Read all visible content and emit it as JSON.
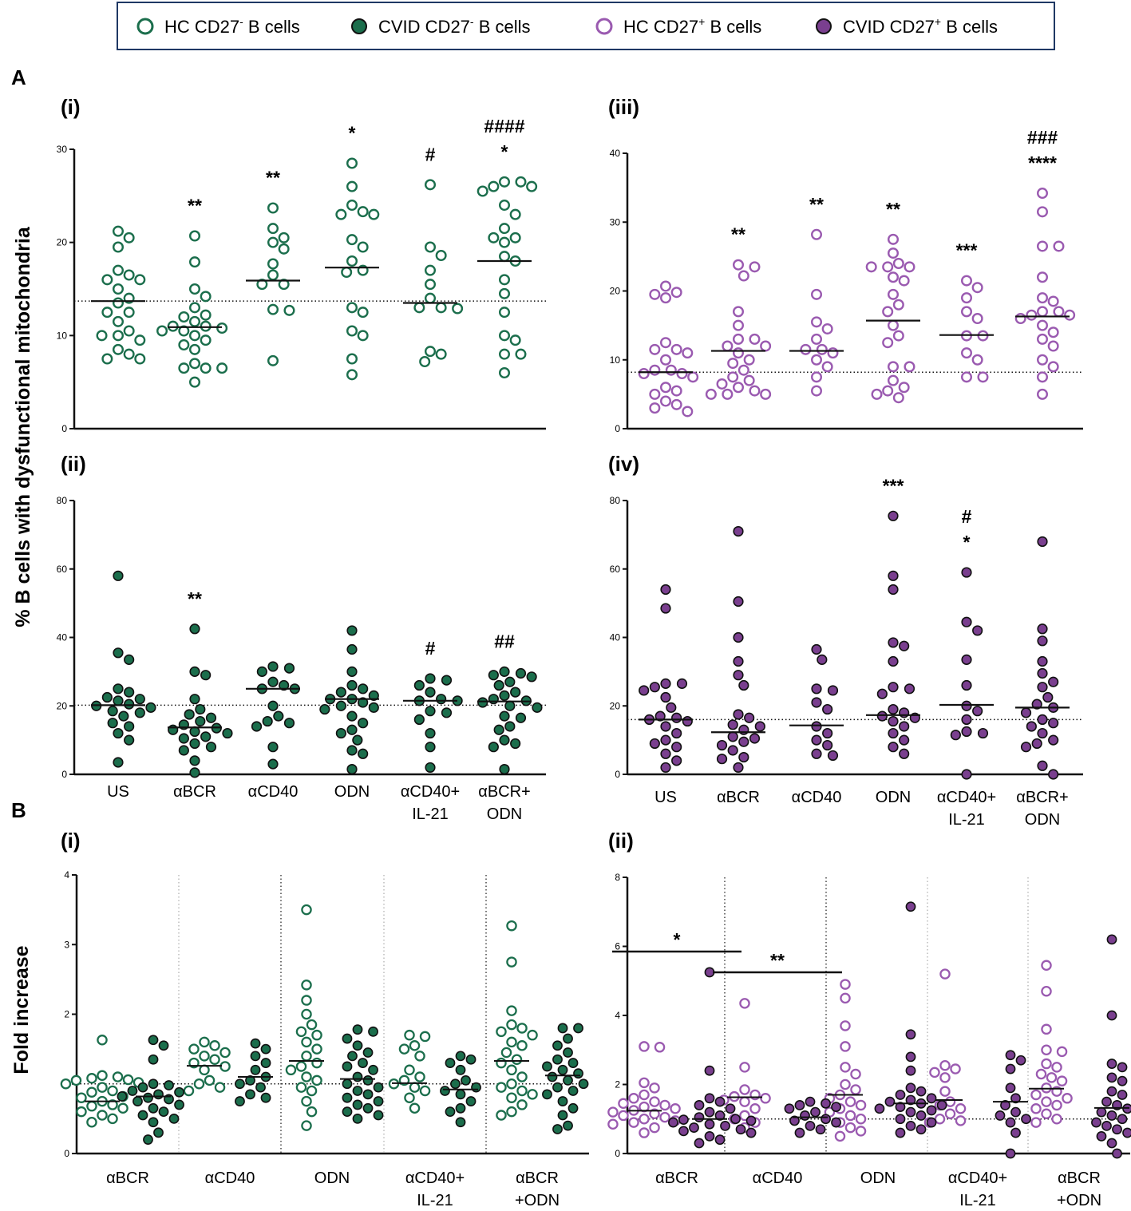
{
  "colors": {
    "green": "#1B6E4C",
    "purple": "#7A3F8F",
    "hcPurple": "#9A5AB0",
    "legendBorder": "#1F3864"
  },
  "legend": [
    {
      "label": "HC CD27",
      "sup": "-",
      "suffix": " B cells",
      "color": "#1B6E4C",
      "filled": false
    },
    {
      "label": "CVID CD27",
      "sup": "-",
      "suffix": " B cells",
      "color": "#1B6E4C",
      "filled": true
    },
    {
      "label": "HC CD27",
      "sup": "+",
      "suffix": " B cells",
      "color": "#9A5AB0",
      "filled": false
    },
    {
      "label": "CVID CD27",
      "sup": "+",
      "suffix": " B cells",
      "color": "#7A3F8F",
      "filled": true
    }
  ],
  "figure": {
    "panelA": "A",
    "panelB": "B",
    "yLabelA": "% B cells with dysfunctional mitochondria",
    "yLabelB": "Fold increase"
  },
  "chart_data": [
    {
      "id": "A-i",
      "panel": "(i)",
      "type": "scatter",
      "group": "HC CD27- B cells",
      "ylim": [
        0,
        30
      ],
      "yticks": [
        0,
        10,
        20,
        30
      ],
      "reference_line": 13.7,
      "categories": [
        "US",
        "αBCR",
        "αCD40",
        "ODN",
        "αCD40+ IL-21",
        "αBCR+ ODN"
      ],
      "values": [
        [
          21.2,
          20.5,
          19.5,
          17,
          16,
          16,
          16.5,
          15,
          14,
          13.5,
          12.5,
          12.5,
          11.5,
          10.5,
          10,
          10,
          9.5,
          8.5,
          8,
          7.5,
          7.5
        ],
        [
          20.7,
          17.9,
          15,
          14.2,
          13,
          12.2,
          12,
          11.5,
          11,
          11,
          10.8,
          10.5,
          10.5,
          10,
          9.5,
          9,
          8.5,
          7,
          6.5,
          6.5,
          6.5,
          5
        ],
        [
          23.7,
          21.5,
          20.5,
          20,
          19.3,
          17.7,
          16.5,
          15.5,
          15.5,
          12.8,
          12.7,
          7.3
        ],
        [
          28.5,
          26,
          24,
          23.3,
          23,
          23,
          20.3,
          19.5,
          18,
          17,
          16.8,
          13,
          12.5,
          10.5,
          10,
          7.5,
          5.8
        ],
        [
          26.2,
          19.5,
          18.6,
          17,
          15.5,
          14,
          13,
          13,
          12.9,
          8.3,
          8,
          7.2
        ],
        [
          26.5,
          26.5,
          26,
          26,
          25.5,
          24,
          23,
          21.5,
          20.5,
          20.5,
          20,
          18.5,
          18,
          16,
          14.5,
          12.5,
          10,
          9.5,
          8,
          8,
          6
        ]
      ],
      "medians": [
        13.7,
        10.9,
        15.9,
        17.3,
        13.5,
        18
      ],
      "significance": [
        "",
        "**",
        "**",
        "*",
        "#",
        "####\n*"
      ]
    },
    {
      "id": "A-ii",
      "panel": "(ii)",
      "type": "scatter",
      "group": "CVID CD27- B cells",
      "ylim": [
        0,
        80
      ],
      "yticks": [
        0,
        20,
        40,
        60,
        80
      ],
      "reference_line": 20.2,
      "categories": [
        "US",
        "αBCR",
        "αCD40",
        "ODN",
        "αCD40+ IL-21",
        "αBCR+ ODN"
      ],
      "values": [
        [
          58,
          35.5,
          33.5,
          25,
          24,
          22.5,
          22,
          21.5,
          20.5,
          20,
          19.5,
          18.5,
          18,
          17,
          15,
          14,
          12,
          10,
          3.5
        ],
        [
          42.5,
          30,
          29,
          22,
          19,
          17.5,
          16.5,
          15.5,
          14.5,
          13.5,
          13,
          12.5,
          12,
          11,
          10.5,
          9,
          8,
          7,
          4,
          0.5
        ],
        [
          31.5,
          31,
          30,
          27,
          26,
          25,
          25,
          20,
          17,
          15.5,
          15,
          14,
          8,
          3
        ],
        [
          42,
          36.5,
          30,
          26,
          25,
          24,
          23,
          22,
          22,
          21,
          20,
          19.5,
          19,
          17,
          15,
          13,
          12,
          10,
          7,
          6,
          1.5
        ],
        [
          28,
          27.5,
          26,
          24,
          22,
          21.5,
          21.5,
          18.5,
          18,
          16,
          12,
          8,
          2
        ],
        [
          30,
          29.5,
          29,
          28.5,
          27,
          26,
          24,
          23,
          22,
          21.5,
          21,
          20,
          19.5,
          17,
          16.5,
          14,
          13,
          10,
          9,
          8,
          1.5
        ]
      ],
      "medians": [
        20.2,
        13.7,
        25,
        22,
        21.5,
        21.3
      ],
      "significance": [
        "",
        "**",
        "",
        "",
        "#",
        "##"
      ]
    },
    {
      "id": "A-iii",
      "panel": "(iii)",
      "type": "scatter",
      "group": "HC CD27+ B cells",
      "ylim": [
        0,
        40
      ],
      "yticks": [
        0,
        10,
        20,
        30,
        40
      ],
      "reference_line": 8.2,
      "categories": [
        "US",
        "αBCR",
        "αCD40",
        "ODN",
        "αCD40+ IL-21",
        "αBCR+ ODN"
      ],
      "values": [
        [
          20.7,
          19.8,
          19.5,
          19,
          12.5,
          11.5,
          11.5,
          11,
          10,
          8.5,
          8.5,
          8,
          8,
          7.5,
          6,
          5.5,
          5,
          4,
          3.5,
          3,
          2.5
        ],
        [
          23.8,
          23.5,
          22.2,
          17,
          15,
          13,
          13,
          12,
          12,
          11,
          10,
          9.5,
          8.5,
          7.5,
          7,
          6.5,
          6,
          5.5,
          5,
          5,
          5
        ],
        [
          28.2,
          19.5,
          15.5,
          14.5,
          13,
          11.5,
          11.5,
          11,
          10,
          9,
          7.5,
          5.5
        ],
        [
          27.5,
          25.5,
          24,
          23.5,
          23.5,
          23.5,
          22,
          21.5,
          19.5,
          18,
          17,
          15,
          13.5,
          12.5,
          9,
          9,
          7,
          6,
          5.5,
          5,
          4.5
        ],
        [
          21.5,
          20.5,
          19,
          17,
          16,
          13.5,
          13.5,
          11,
          10,
          7.5,
          7.5
        ],
        [
          34.2,
          31.5,
          26.5,
          26.5,
          22,
          19,
          18.5,
          17,
          17,
          16.5,
          16.5,
          16,
          15,
          14,
          13,
          12,
          10,
          9,
          7.5,
          5
        ]
      ],
      "medians": [
        8.2,
        11.3,
        11.3,
        15.7,
        13.6,
        16.3
      ],
      "significance": [
        "",
        "**",
        "**",
        "**",
        "***",
        "###\n****"
      ]
    },
    {
      "id": "A-iv",
      "panel": "(iv)",
      "type": "scatter",
      "group": "CVID CD27+ B cells",
      "ylim": [
        0,
        80
      ],
      "yticks": [
        0,
        20,
        40,
        60,
        80
      ],
      "reference_line": 16,
      "categories": [
        "US",
        "αBCR",
        "αCD40",
        "ODN",
        "αCD40+ IL-21",
        "αBCR+ ODN"
      ],
      "values": [
        [
          54,
          48.5,
          26.5,
          26.5,
          25.5,
          24.5,
          22.5,
          19.5,
          17,
          16.5,
          16,
          15.5,
          14,
          12,
          10,
          9,
          8,
          6,
          4,
          2
        ],
        [
          71,
          50.5,
          40,
          33,
          29,
          26,
          17.5,
          16.5,
          14.5,
          14,
          13,
          11,
          10.5,
          9.5,
          8.5,
          7,
          5,
          4.5,
          2
        ],
        [
          36.5,
          33.5,
          25,
          24.5,
          21,
          19,
          14,
          12,
          10,
          8.5,
          6,
          5.5
        ],
        [
          75.5,
          58,
          54,
          38.5,
          37.5,
          33,
          25.5,
          25,
          23.5,
          19,
          18,
          17,
          16.5,
          15.5,
          14,
          12,
          10,
          8,
          6
        ],
        [
          59,
          44.5,
          42,
          33.5,
          26,
          20,
          18.5,
          16,
          12.5,
          12,
          11.5,
          0
        ],
        [
          68,
          42.5,
          39,
          33,
          29.5,
          27,
          25.5,
          22.5,
          20.5,
          19.5,
          18,
          16,
          15,
          14,
          12,
          10,
          9,
          8,
          2.5,
          0
        ]
      ],
      "medians": [
        16,
        12.3,
        14.3,
        17.3,
        20.3,
        19.5
      ],
      "significance": [
        "",
        "",
        "",
        "***",
        "#\n*",
        ""
      ]
    },
    {
      "id": "B-i",
      "panel": "(i)",
      "type": "scatter",
      "group": "CD27- fold increase (HC open, CVID filled)",
      "ylim": [
        0,
        4
      ],
      "yticks": [
        0,
        1,
        2,
        3,
        4
      ],
      "reference_line": 1,
      "categories": [
        "αBCR",
        "αCD40",
        "ODN",
        "αCD40+ IL-21",
        "αBCR +ODN"
      ],
      "series": [
        {
          "name": "HC CD27- B cells",
          "values": [
            [
              1.63,
              1.12,
              1.1,
              1.08,
              1.06,
              1.05,
              1.02,
              1,
              0.95,
              0.9,
              0.88,
              0.82,
              0.8,
              0.75,
              0.7,
              0.68,
              0.65,
              0.6,
              0.55,
              0.5,
              0.45
            ],
            [
              1.6,
              1.55,
              1.5,
              1.45,
              1.4,
              1.35,
              1.3,
              1.25,
              1.2,
              1.05,
              1,
              0.95,
              0.9
            ],
            [
              3.5,
              2.42,
              2.2,
              2,
              1.85,
              1.75,
              1.7,
              1.6,
              1.5,
              1.4,
              1.3,
              1.25,
              1.2,
              1.1,
              1.05,
              0.95,
              0.9,
              0.75,
              0.6,
              0.4
            ],
            [
              1.7,
              1.68,
              1.55,
              1.5,
              1.4,
              1.2,
              1.1,
              1.05,
              1,
              0.95,
              0.9,
              0.8,
              0.65
            ],
            [
              3.27,
              2.75,
              2.05,
              1.85,
              1.8,
              1.75,
              1.7,
              1.6,
              1.55,
              1.45,
              1.35,
              1.3,
              1.2,
              1.1,
              1,
              0.95,
              0.9,
              0.85,
              0.8,
              0.7,
              0.6,
              0.55
            ]
          ],
          "medians": [
            0.75,
            1.26,
            1.33,
            1.01,
            1.33
          ]
        },
        {
          "name": "CVID CD27- B cells",
          "values": [
            [
              1.63,
              1.55,
              1.35,
              1,
              0.98,
              0.95,
              0.9,
              0.88,
              0.85,
              0.82,
              0.8,
              0.78,
              0.75,
              0.7,
              0.65,
              0.6,
              0.55,
              0.5,
              0.45,
              0.3,
              0.2
            ],
            [
              1.58,
              1.5,
              1.4,
              1.3,
              1.2,
              1.1,
              1.05,
              1,
              0.95,
              0.85,
              0.8,
              0.75
            ],
            [
              1.78,
              1.75,
              1.65,
              1.55,
              1.45,
              1.4,
              1.3,
              1.25,
              1.2,
              1.1,
              1.05,
              1,
              0.95,
              0.9,
              0.85,
              0.8,
              0.75,
              0.7,
              0.65,
              0.6,
              0.55,
              0.5
            ],
            [
              1.4,
              1.35,
              1.3,
              1.2,
              1.05,
              1,
              0.95,
              0.9,
              0.85,
              0.75,
              0.65,
              0.6,
              0.45
            ],
            [
              1.8,
              1.8,
              1.65,
              1.55,
              1.45,
              1.35,
              1.3,
              1.25,
              1.2,
              1.15,
              1.1,
              1.05,
              1,
              0.95,
              0.9,
              0.85,
              0.75,
              0.65,
              0.55,
              0.4,
              0.35
            ]
          ],
          "medians": [
            0.82,
            1.1,
            1.07,
            0.92,
            1.12
          ]
        }
      ],
      "significance": [
        "",
        "",
        "",
        "",
        ""
      ]
    },
    {
      "id": "B-ii",
      "panel": "(ii)",
      "type": "scatter",
      "group": "CD27+ fold increase (HC open, CVID filled)",
      "ylim": [
        0,
        8
      ],
      "yticks": [
        0,
        2,
        4,
        6,
        8
      ],
      "reference_line": 1,
      "categories": [
        "αBCR",
        "αCD40",
        "ODN",
        "αCD40+ IL-21",
        "αBCR +ODN"
      ],
      "series": [
        {
          "name": "HC CD27+ B cells",
          "values": [
            [
              3.1,
              3.08,
              2.05,
              1.9,
              1.7,
              1.6,
              1.5,
              1.45,
              1.4,
              1.35,
              1.3,
              1.25,
              1.2,
              1.15,
              1.1,
              1.05,
              1,
              0.95,
              0.9,
              0.85,
              0.75,
              0.6
            ],
            [
              4.35,
              2.5,
              1.85,
              1.7,
              1.65,
              1.6,
              1.55,
              1.5,
              1.3,
              1.1,
              1,
              0.9,
              0.75
            ],
            [
              4.9,
              4.5,
              3.7,
              3.1,
              2.5,
              2.3,
              2,
              1.85,
              1.7,
              1.6,
              1.5,
              1.4,
              1.3,
              1.2,
              1.1,
              1,
              0.9,
              0.75,
              0.65,
              0.5
            ],
            [
              5.2,
              2.55,
              2.45,
              2.35,
              2.2,
              1.8,
              1.5,
              1.4,
              1.3,
              1.15,
              1,
              0.95,
              0.9
            ],
            [
              5.45,
              4.7,
              3.6,
              3,
              2.95,
              2.6,
              2.5,
              2.3,
              2.2,
              2.1,
              1.9,
              1.8,
              1.7,
              1.6,
              1.5,
              1.4,
              1.3,
              1.15,
              1,
              0.9
            ]
          ],
          "medians": [
            1.24,
            1.63,
            1.7,
            1.55,
            1.88
          ]
        },
        {
          "name": "CVID CD27+ B cells",
          "values": [
            [
              5.25,
              2.4,
              1.6,
              1.5,
              1.4,
              1.3,
              1.2,
              1.1,
              1.05,
              1,
              0.98,
              0.95,
              0.9,
              0.85,
              0.8,
              0.75,
              0.7,
              0.65,
              0.6,
              0.5,
              0.4,
              0.3
            ],
            [
              1.5,
              1.45,
              1.4,
              1.35,
              1.3,
              1.2,
              1.1,
              1,
              0.95,
              0.9,
              0.8,
              0.7,
              0.6
            ],
            [
              7.15,
              3.45,
              2.8,
              2.4,
              1.9,
              1.8,
              1.7,
              1.6,
              1.55,
              1.5,
              1.45,
              1.4,
              1.35,
              1.3,
              1.25,
              1.2,
              1.1,
              1,
              0.9,
              0.8,
              0.7,
              0.6
            ],
            [
              2.85,
              2.7,
              2.45,
              1.9,
              1.6,
              1.4,
              1.2,
              1.1,
              1,
              0.9,
              0.6,
              0
            ],
            [
              6.2,
              4,
              2.6,
              2.5,
              2.2,
              2.1,
              1.8,
              1.7,
              1.5,
              1.4,
              1.3,
              1.2,
              1.1,
              1,
              0.9,
              0.8,
              0.7,
              0.6,
              0.5,
              0.3,
              0
            ]
          ],
          "medians": [
            1,
            1.05,
            1.45,
            1.5,
            1.32
          ]
        }
      ],
      "significance": [
        "*",
        "**",
        "",
        "",
        ""
      ]
    }
  ]
}
